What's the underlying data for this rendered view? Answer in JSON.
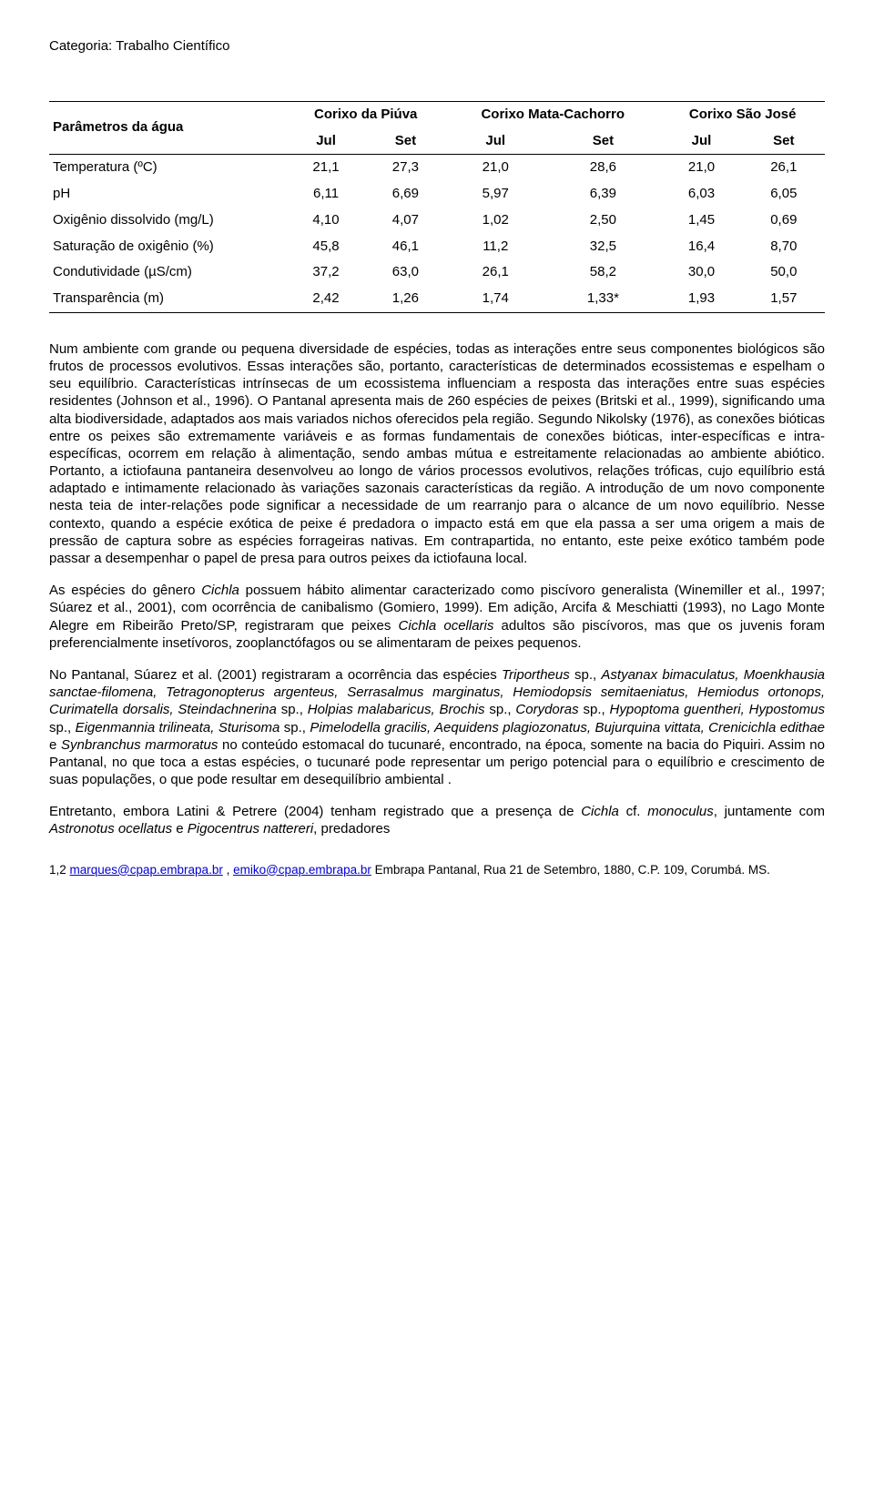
{
  "category": "Categoria: Trabalho Científico",
  "table": {
    "param_header": "Parâmetros da água",
    "groups": [
      {
        "name": "Corixo da Piúva",
        "sub": [
          "Jul",
          "Set"
        ]
      },
      {
        "name": "Corixo Mata-Cachorro",
        "sub": [
          "Jul",
          "Set"
        ]
      },
      {
        "name": "Corixo São José",
        "sub": [
          "Jul",
          "Set"
        ]
      }
    ],
    "rows": [
      {
        "label": "Temperatura (ºC)",
        "vals": [
          "21,1",
          "27,3",
          "21,0",
          "28,6",
          "21,0",
          "26,1"
        ]
      },
      {
        "label": "pH",
        "vals": [
          "6,11",
          "6,69",
          "5,97",
          "6,39",
          "6,03",
          "6,05"
        ]
      },
      {
        "label": "Oxigênio dissolvido (mg/L)",
        "vals": [
          "4,10",
          "4,07",
          "1,02",
          "2,50",
          "1,45",
          "0,69"
        ]
      },
      {
        "label": "Saturação de oxigênio (%)",
        "vals": [
          "45,8",
          "46,1",
          "11,2",
          "32,5",
          "16,4",
          "8,70"
        ]
      },
      {
        "label": "Condutividade (µS/cm)",
        "vals": [
          "37,2",
          "63,0",
          "26,1",
          "58,2",
          "30,0",
          "50,0"
        ]
      },
      {
        "label": "Transparência (m)",
        "vals": [
          "2,42",
          "1,26",
          "1,74",
          "1,33*",
          "1,93",
          "1,57"
        ]
      }
    ]
  },
  "para1_a": "Num ambiente com grande ou pequena diversidade de espécies, todas as interações entre seus componentes biológicos são frutos de processos evolutivos. Essas interações são, portanto, características de determinados ecossistemas e espelham o seu equilíbrio. Características intrínsecas de um ecossistema influenciam a resposta das interações entre suas espécies residentes (Johnson et al., 1996). O Pantanal apresenta mais de 260 espécies de peixes (Britski et al., 1999), significando uma alta biodiversidade, adaptados aos mais variados nichos oferecidos pela região. Segundo Nikolsky (1976), as conexões bióticas entre os peixes são extremamente variáveis e as formas fundamentais de conexões bióticas, inter-específicas e intra-específicas, ocorrem em relação à alimentação, sendo ambas mútua e estreitamente relacionadas ao ambiente abiótico. Portanto, a ictiofauna pantaneira desenvolveu ao longo de vários processos evolutivos, relações tróficas, cujo equilíbrio está adaptado e intimamente relacionado às variações sazonais características da região. A introdução de um novo componente nesta teia de inter-relações pode significar a necessidade de um rearranjo para o alcance de um novo equilíbrio. Nesse contexto, quando a espécie exótica de peixe é predadora o impacto está em que ela passa a ser uma origem a mais de pressão de captura sobre as espécies forrageiras nativas. Em contrapartida, no entanto, este peixe exótico também pode passar a desempenhar o papel de presa para outros peixes da ictiofauna local.",
  "para2_a": "As espécies do gênero ",
  "para2_b": "Cichla",
  "para2_c": " possuem hábito alimentar caracterizado como piscívoro generalista (Winemiller et al., 1997; Súarez et al., 2001), com ocorrência de canibalismo (Gomiero, 1999). Em adição, Arcifa & Meschiatti (1993), no Lago Monte Alegre em Ribeirão Preto/SP, registraram que peixes ",
  "para2_d": "Cichla ocellaris",
  "para2_e": " adultos são piscívoros, mas que os juvenis foram preferencialmente insetívoros, zooplanctófagos ou se alimentaram de peixes pequenos.",
  "para3_a": "No Pantanal, Súarez et al. (2001) registraram a ocorrência das espécies ",
  "para3_b": "Triportheus",
  "para3_c": " sp., ",
  "para3_d": "Astyanax bimaculatus, Moenkhausia sanctae-filomena, Tetragonopterus argenteus, Serrasalmus marginatus, Hemiodopsis semitaeniatus, Hemiodus ortonops, Curimatella dorsalis, Steindachnerina",
  "para3_e": " sp., ",
  "para3_f": "Holpias malabaricus, Brochis",
  "para3_g": " sp., ",
  "para3_h": "Corydoras",
  "para3_i": " sp., ",
  "para3_j": "Hypoptoma guentheri, Hypostomus",
  "para3_k": " sp., ",
  "para3_l": "Eigenmannia trilineata, Sturisoma",
  "para3_m": " sp., ",
  "para3_n": "Pimelodella gracilis, Aequidens plagiozonatus, Bujurquina vittata, Crenicichla edithae",
  "para3_o": " e ",
  "para3_p": "Synbranchus marmoratus",
  "para3_q": " no conteúdo estomacal do tucunaré, encontrado, na época, somente na bacia do Piquiri. Assim no Pantanal, no que toca a estas espécies, o tucunaré pode representar um perigo potencial para o equilíbrio e crescimento de suas populações, o que pode resultar em desequilíbrio ambiental .",
  "para4_a": "Entretanto, embora Latini & Petrere (2004) tenham registrado que a presença de ",
  "para4_b": "Cichla",
  "para4_c": " cf. ",
  "para4_d": "monoculus",
  "para4_e": ", juntamente com ",
  "para4_f": "Astronotus ocellatus",
  "para4_g": " e ",
  "para4_h": "Pigocentrus nattereri",
  "para4_i": ", predadores",
  "footer": {
    "prefix": "1,2 ",
    "email1": "marques@cpap.embrapa.br",
    "sep1": " , ",
    "email2": "emiko@cpap.embrapa.br",
    "tail": " Embrapa Pantanal, Rua 21 de Setembro, 1880, C.P. 109, Corumbá. MS."
  }
}
